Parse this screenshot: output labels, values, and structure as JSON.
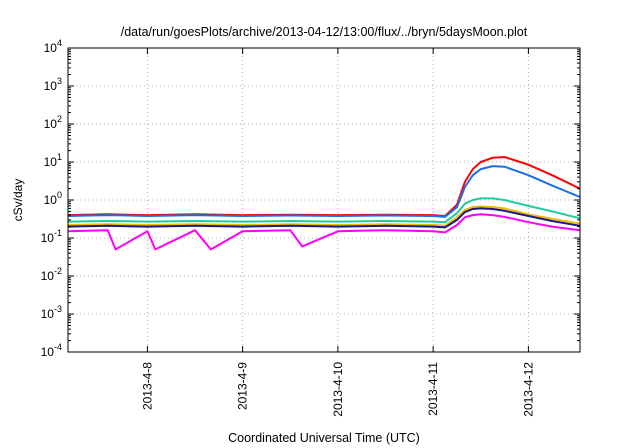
{
  "chart_data": {
    "type": "line",
    "title": "/data/run/goesPlots/archive/2013-04-12/13:00/flux/../bryn/5daysMoon.plot",
    "xlabel": "Coordinated Universal Time (UTC)",
    "ylabel": "cSv/day",
    "x_range": [
      "2013-04-07T04:00",
      "2013-04-12T13:00"
    ],
    "x_ticks": [
      "2013-4-8",
      "2013-4-9",
      "2013-4-10",
      "2013-4-11",
      "2013-4-12"
    ],
    "y_scale": "log",
    "ylim": [
      0.0001,
      10000
    ],
    "y_ticks": [
      {
        "base": "10",
        "exp": "-4"
      },
      {
        "base": "10",
        "exp": "-3"
      },
      {
        "base": "10",
        "exp": "-2"
      },
      {
        "base": "10",
        "exp": "-1"
      },
      {
        "base": "10",
        "exp": "0"
      },
      {
        "base": "10",
        "exp": "1"
      },
      {
        "base": "10",
        "exp": "2"
      },
      {
        "base": "10",
        "exp": "3"
      },
      {
        "base": "10",
        "exp": "4"
      }
    ],
    "grid": true,
    "series": [
      {
        "color": "#ff0000",
        "points": [
          [
            "2013-04-07T04:00",
            0.4
          ],
          [
            "2013-04-07T14:00",
            0.42
          ],
          [
            "2013-04-08T00:00",
            0.4
          ],
          [
            "2013-04-08T12:00",
            0.42
          ],
          [
            "2013-04-09T00:00",
            0.4
          ],
          [
            "2013-04-09T12:00",
            0.41
          ],
          [
            "2013-04-10T00:00",
            0.4
          ],
          [
            "2013-04-10T12:00",
            0.41
          ],
          [
            "2013-04-11T00:00",
            0.4
          ],
          [
            "2013-04-11T03:00",
            0.38
          ],
          [
            "2013-04-11T06:00",
            0.75
          ],
          [
            "2013-04-11T08:00",
            3.0
          ],
          [
            "2013-04-11T10:00",
            6.5
          ],
          [
            "2013-04-11T12:00",
            10.0
          ],
          [
            "2013-04-11T15:00",
            13.0
          ],
          [
            "2013-04-11T18:00",
            13.5
          ],
          [
            "2013-04-12T00:00",
            8.5
          ],
          [
            "2013-04-12T06:00",
            4.5
          ],
          [
            "2013-04-12T13:00",
            2.0
          ]
        ]
      },
      {
        "color": "#1a6ee6",
        "points": [
          [
            "2013-04-07T04:00",
            0.38
          ],
          [
            "2013-04-07T14:00",
            0.4
          ],
          [
            "2013-04-08T00:00",
            0.38
          ],
          [
            "2013-04-08T12:00",
            0.4
          ],
          [
            "2013-04-09T00:00",
            0.38
          ],
          [
            "2013-04-09T12:00",
            0.39
          ],
          [
            "2013-04-10T00:00",
            0.38
          ],
          [
            "2013-04-10T12:00",
            0.39
          ],
          [
            "2013-04-11T00:00",
            0.38
          ],
          [
            "2013-04-11T03:00",
            0.36
          ],
          [
            "2013-04-11T06:00",
            0.65
          ],
          [
            "2013-04-11T08:00",
            2.2
          ],
          [
            "2013-04-11T10:00",
            4.5
          ],
          [
            "2013-04-11T12:00",
            6.5
          ],
          [
            "2013-04-11T15:00",
            7.8
          ],
          [
            "2013-04-11T18:00",
            7.5
          ],
          [
            "2013-04-12T00:00",
            4.5
          ],
          [
            "2013-04-12T06:00",
            2.4
          ],
          [
            "2013-04-12T13:00",
            1.2
          ]
        ]
      },
      {
        "color": "#1fcca0",
        "points": [
          [
            "2013-04-07T04:00",
            0.27
          ],
          [
            "2013-04-07T14:00",
            0.28
          ],
          [
            "2013-04-08T00:00",
            0.27
          ],
          [
            "2013-04-08T12:00",
            0.28
          ],
          [
            "2013-04-09T00:00",
            0.27
          ],
          [
            "2013-04-09T12:00",
            0.28
          ],
          [
            "2013-04-10T00:00",
            0.27
          ],
          [
            "2013-04-10T12:00",
            0.28
          ],
          [
            "2013-04-11T00:00",
            0.27
          ],
          [
            "2013-04-11T03:00",
            0.26
          ],
          [
            "2013-04-11T06:00",
            0.45
          ],
          [
            "2013-04-11T08:00",
            0.8
          ],
          [
            "2013-04-11T10:00",
            1.0
          ],
          [
            "2013-04-11T12:00",
            1.1
          ],
          [
            "2013-04-11T15:00",
            1.1
          ],
          [
            "2013-04-11T18:00",
            1.0
          ],
          [
            "2013-04-12T00:00",
            0.7
          ],
          [
            "2013-04-12T06:00",
            0.5
          ],
          [
            "2013-04-12T13:00",
            0.33
          ]
        ]
      },
      {
        "color": "#f2b700",
        "points": [
          [
            "2013-04-07T04:00",
            0.22
          ],
          [
            "2013-04-07T14:00",
            0.23
          ],
          [
            "2013-04-08T00:00",
            0.22
          ],
          [
            "2013-04-08T12:00",
            0.23
          ],
          [
            "2013-04-09T00:00",
            0.22
          ],
          [
            "2013-04-09T12:00",
            0.23
          ],
          [
            "2013-04-10T00:00",
            0.22
          ],
          [
            "2013-04-10T12:00",
            0.23
          ],
          [
            "2013-04-11T00:00",
            0.22
          ],
          [
            "2013-04-11T03:00",
            0.21
          ],
          [
            "2013-04-11T06:00",
            0.35
          ],
          [
            "2013-04-11T08:00",
            0.55
          ],
          [
            "2013-04-11T10:00",
            0.65
          ],
          [
            "2013-04-11T12:00",
            0.68
          ],
          [
            "2013-04-11T15:00",
            0.65
          ],
          [
            "2013-04-11T18:00",
            0.6
          ],
          [
            "2013-04-12T00:00",
            0.42
          ],
          [
            "2013-04-12T06:00",
            0.32
          ],
          [
            "2013-04-12T13:00",
            0.24
          ]
        ]
      },
      {
        "color": "#1a1a80",
        "points": [
          [
            "2013-04-07T04:00",
            0.2
          ],
          [
            "2013-04-07T14:00",
            0.21
          ],
          [
            "2013-04-08T00:00",
            0.2
          ],
          [
            "2013-04-08T12:00",
            0.21
          ],
          [
            "2013-04-09T00:00",
            0.2
          ],
          [
            "2013-04-09T12:00",
            0.21
          ],
          [
            "2013-04-10T00:00",
            0.2
          ],
          [
            "2013-04-10T12:00",
            0.21
          ],
          [
            "2013-04-11T00:00",
            0.2
          ],
          [
            "2013-04-11T03:00",
            0.19
          ],
          [
            "2013-04-11T06:00",
            0.3
          ],
          [
            "2013-04-11T08:00",
            0.48
          ],
          [
            "2013-04-11T10:00",
            0.58
          ],
          [
            "2013-04-11T12:00",
            0.6
          ],
          [
            "2013-04-11T15:00",
            0.58
          ],
          [
            "2013-04-11T18:00",
            0.52
          ],
          [
            "2013-04-12T00:00",
            0.38
          ],
          [
            "2013-04-12T06:00",
            0.28
          ],
          [
            "2013-04-12T13:00",
            0.21
          ]
        ]
      },
      {
        "color": "#ff00ff",
        "points": [
          [
            "2013-04-07T04:00",
            0.15
          ],
          [
            "2013-04-07T14:00",
            0.16
          ],
          [
            "2013-04-07T16:00",
            0.05
          ],
          [
            "2013-04-08T00:00",
            0.15
          ],
          [
            "2013-04-08T02:00",
            0.05
          ],
          [
            "2013-04-08T12:00",
            0.16
          ],
          [
            "2013-04-08T16:00",
            0.05
          ],
          [
            "2013-04-09T00:00",
            0.15
          ],
          [
            "2013-04-09T12:00",
            0.16
          ],
          [
            "2013-04-09T15:00",
            0.06
          ],
          [
            "2013-04-10T00:00",
            0.15
          ],
          [
            "2013-04-10T12:00",
            0.16
          ],
          [
            "2013-04-11T00:00",
            0.15
          ],
          [
            "2013-04-11T03:00",
            0.14
          ],
          [
            "2013-04-11T06:00",
            0.22
          ],
          [
            "2013-04-11T08:00",
            0.35
          ],
          [
            "2013-04-11T10:00",
            0.4
          ],
          [
            "2013-04-11T12:00",
            0.42
          ],
          [
            "2013-04-11T15:00",
            0.4
          ],
          [
            "2013-04-11T18:00",
            0.36
          ],
          [
            "2013-04-12T00:00",
            0.26
          ],
          [
            "2013-04-12T06:00",
            0.2
          ],
          [
            "2013-04-12T13:00",
            0.16
          ]
        ]
      }
    ]
  }
}
